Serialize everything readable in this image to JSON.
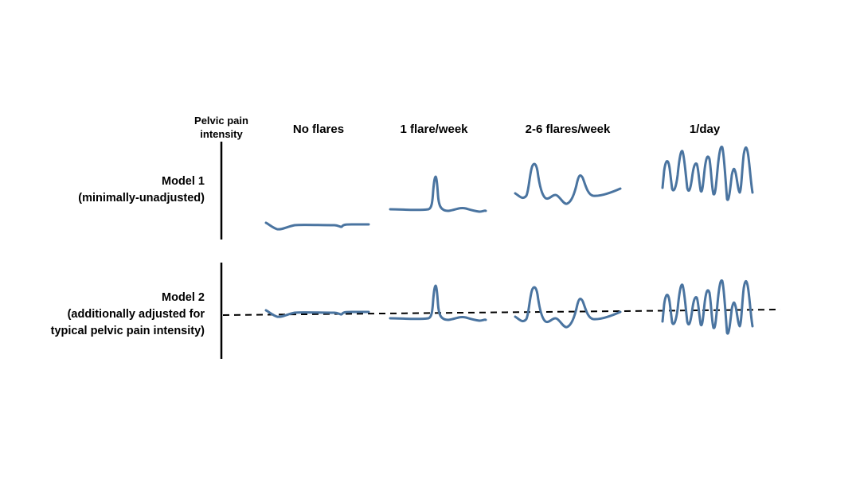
{
  "y_axis_title_line1": "Pelvic pain",
  "y_axis_title_line2": "intensity",
  "columns": [
    {
      "label": "No flares"
    },
    {
      "label": "1 flare/week"
    },
    {
      "label": "2-6 flares/week"
    },
    {
      "label": "1/day"
    }
  ],
  "rows": [
    {
      "line1": "Model 1",
      "line2": "(minimally-unadjusted)"
    },
    {
      "line1": "Model 2",
      "line2": "(additionally adjusted for",
      "line3": "typical pelvic pain intensity)"
    }
  ],
  "colors": {
    "trace": "#4a74a0",
    "axis": "#000000",
    "reference_line": "#000000"
  }
}
